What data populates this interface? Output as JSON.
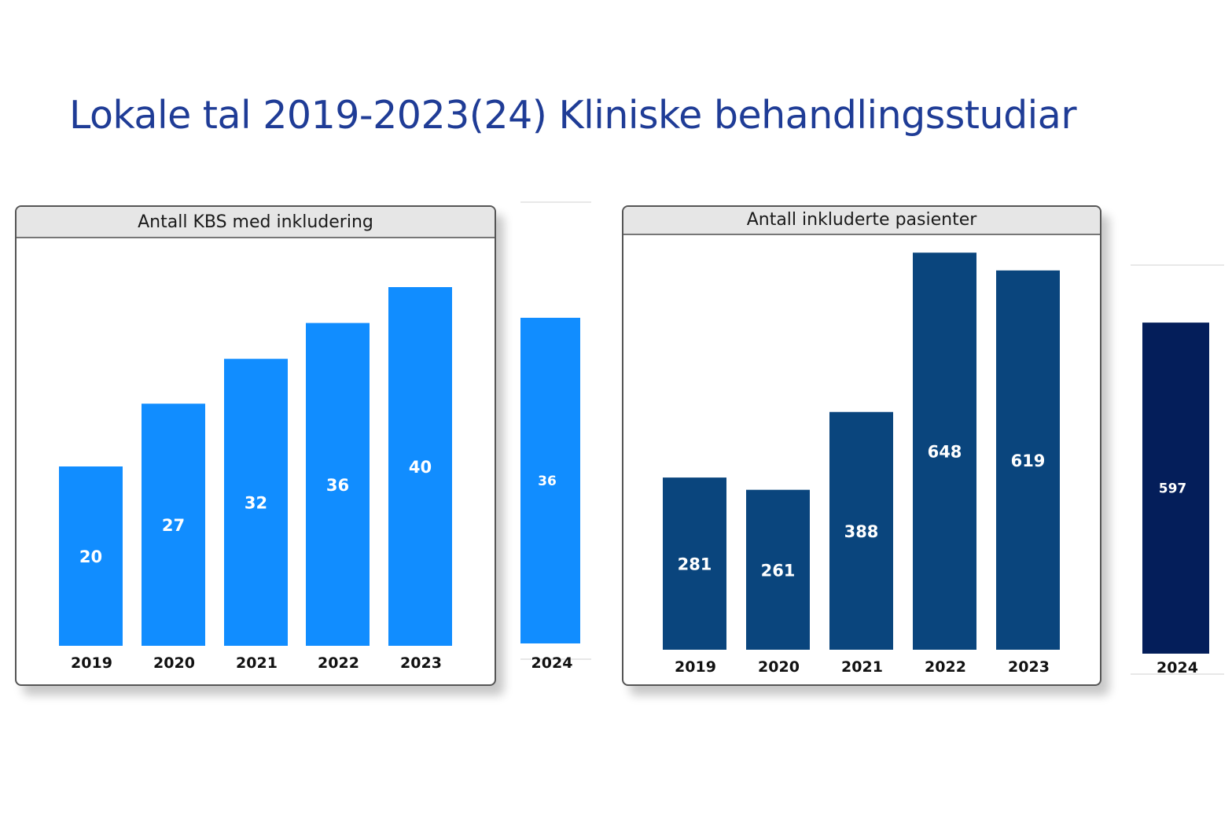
{
  "title": "Lokale tal 2019-2023(24) Kliniske behandlingsstudiar",
  "chart_data": [
    {
      "type": "bar",
      "title": "Antall KBS med inkludering",
      "categories": [
        "2019",
        "2020",
        "2021",
        "2022",
        "2023"
      ],
      "values": [
        20,
        27,
        32,
        36,
        40
      ],
      "color": "#118dff",
      "extra": {
        "category": "2024",
        "value": 36,
        "color": "#118dff"
      }
    },
    {
      "type": "bar",
      "title": "Antall inkluderte pasienter",
      "categories": [
        "2019",
        "2020",
        "2021",
        "2022",
        "2023"
      ],
      "values": [
        281,
        261,
        388,
        648,
        619
      ],
      "color": "#0a457d",
      "extra": {
        "category": "2024",
        "value": 597,
        "color": "#041e5a"
      }
    }
  ]
}
